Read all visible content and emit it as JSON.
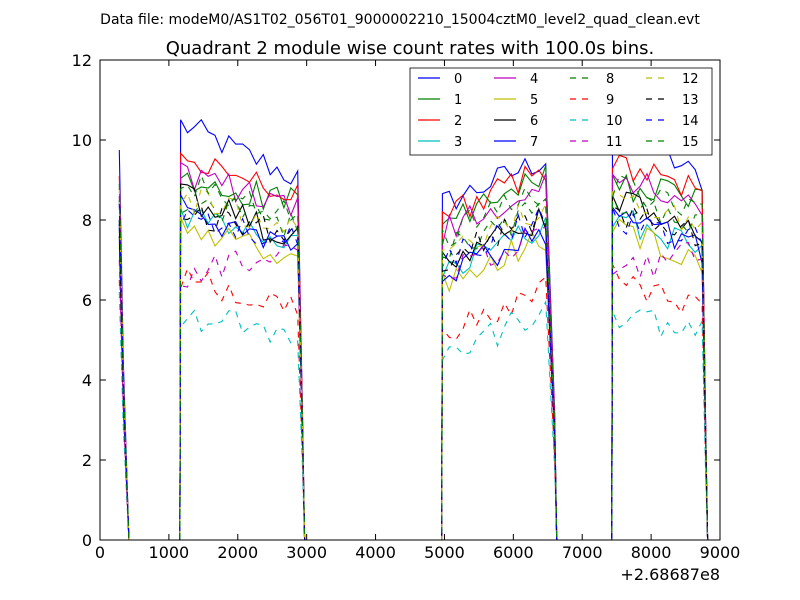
{
  "chart_data": {
    "type": "line",
    "suptitle": "Data file: modeM0/AS1T02_056T01_9000002210_15004cztM0_level2_quad_clean.evt",
    "title": "Quadrant 2 module wise count rates with 100.0s bins.",
    "xlabel": "",
    "ylabel": "",
    "x_offset_label": "+2.68687e8",
    "xlim": [
      0,
      9000
    ],
    "ylim": [
      0,
      12
    ],
    "xticks": [
      0,
      1000,
      2000,
      3000,
      4000,
      5000,
      6000,
      7000,
      8000,
      9000
    ],
    "yticks": [
      0,
      2,
      4,
      6,
      8,
      10,
      12
    ],
    "grid": false,
    "legend_position": "top-right",
    "legend_columns": 4,
    "segments": [
      {
        "start": 280,
        "end": 420
      },
      {
        "start": 1170,
        "end": 2900
      },
      {
        "start": 4970,
        "end": 6560
      },
      {
        "start": 7440,
        "end": 8750
      }
    ],
    "series": [
      {
        "name": "0",
        "color": "#0000ff",
        "dash": "solid",
        "peak": 9.75,
        "levels": [
          10.4,
          9.0
        ]
      },
      {
        "name": "1",
        "color": "#008000",
        "dash": "solid",
        "peak": 7.8,
        "levels": [
          8.9,
          8.5
        ]
      },
      {
        "name": "2",
        "color": "#ff0000",
        "dash": "solid",
        "peak": 9.1,
        "levels": [
          9.5,
          8.7
        ]
      },
      {
        "name": "3",
        "color": "#00bfbf",
        "dash": "solid",
        "peak": 8.0,
        "levels": [
          8.1,
          7.3
        ]
      },
      {
        "name": "4",
        "color": "#bf00bf",
        "dash": "solid",
        "peak": 8.6,
        "levels": [
          9.2,
          8.3
        ]
      },
      {
        "name": "5",
        "color": "#bfbf00",
        "dash": "solid",
        "peak": 7.4,
        "levels": [
          7.8,
          7.0
        ]
      },
      {
        "name": "6",
        "color": "#000000",
        "dash": "solid",
        "peak": 7.6,
        "levels": [
          8.6,
          7.5
        ]
      },
      {
        "name": "7",
        "color": "#0000ff",
        "dash": "solid",
        "peak": 7.9,
        "levels": [
          8.3,
          7.2
        ]
      },
      {
        "name": "8",
        "color": "#008000",
        "dash": "dashed",
        "peak": 8.5,
        "levels": [
          8.5,
          7.8
        ]
      },
      {
        "name": "9",
        "color": "#ff0000",
        "dash": "dashed",
        "peak": 6.5,
        "levels": [
          6.6,
          5.8
        ]
      },
      {
        "name": "10",
        "color": "#00bfbf",
        "dash": "dashed",
        "peak": 6.2,
        "levels": [
          5.6,
          5.2
        ]
      },
      {
        "name": "11",
        "color": "#bf00bf",
        "dash": "dashed",
        "peak": 7.0,
        "levels": [
          6.6,
          7.2
        ]
      },
      {
        "name": "12",
        "color": "#bfbf00",
        "dash": "dashed",
        "peak": 8.8,
        "levels": [
          8.6,
          7.8
        ]
      },
      {
        "name": "13",
        "color": "#000000",
        "dash": "dashed",
        "peak": 8.0,
        "levels": [
          8.2,
          7.6
        ]
      },
      {
        "name": "14",
        "color": "#0000ff",
        "dash": "dashed",
        "peak": 8.4,
        "levels": [
          8.0,
          7.6
        ]
      },
      {
        "name": "15",
        "color": "#008000",
        "dash": "dashed",
        "peak": 8.9,
        "levels": [
          8.9,
          8.2
        ]
      }
    ]
  }
}
